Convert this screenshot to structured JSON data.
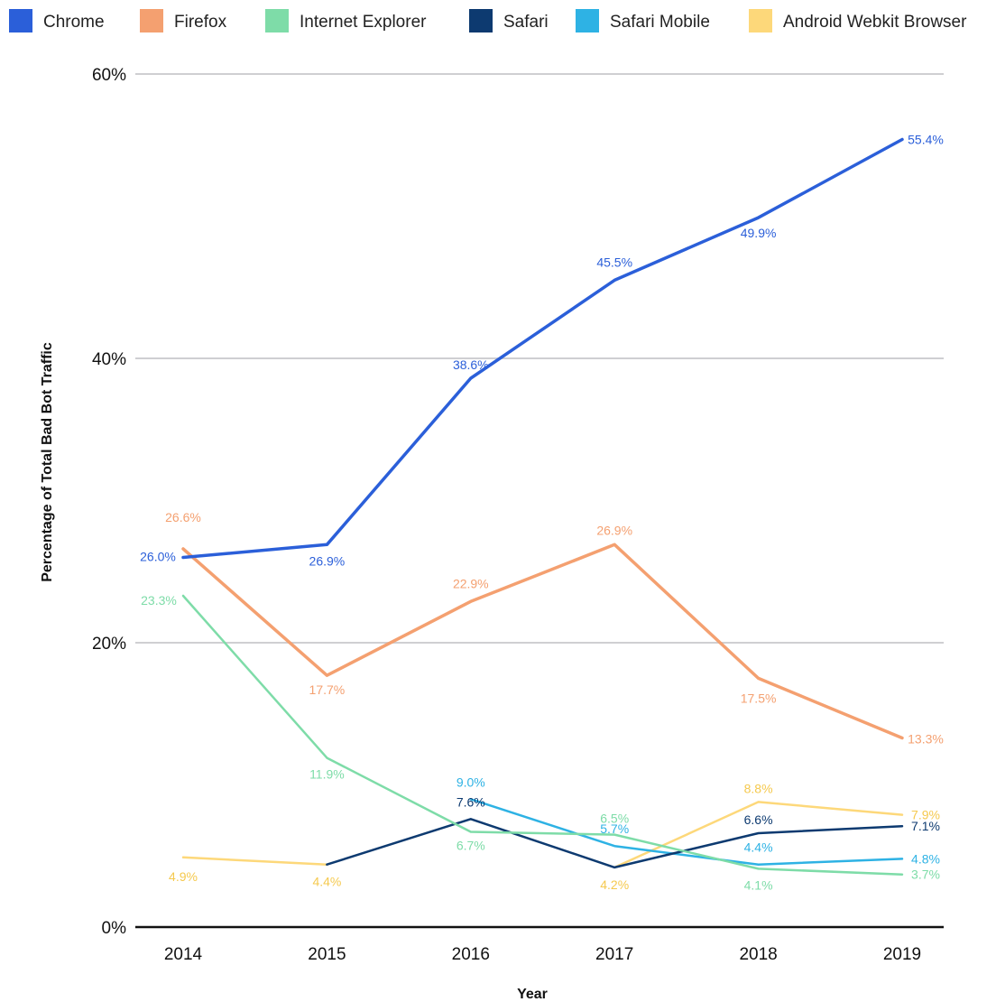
{
  "chart_data": {
    "type": "line",
    "title": "",
    "xlabel": "Year",
    "ylabel": "Percentage of Total Bad Bot Traffic",
    "x": [
      "2014",
      "2015",
      "2016",
      "2017",
      "2018",
      "2019"
    ],
    "ylim": [
      0,
      60
    ],
    "yticks": [
      0,
      20,
      40,
      60
    ],
    "ytick_labels": [
      "0%",
      "20%",
      "40%",
      "60%"
    ],
    "grid": true,
    "legend_position": "top",
    "series": [
      {
        "name": "Chrome",
        "color": "#2b5fd9",
        "values": [
          26.0,
          26.9,
          38.6,
          45.5,
          49.9,
          55.4
        ],
        "labels": [
          "26.0%",
          "26.9%",
          "38.6%",
          "45.5%",
          "49.9%",
          "55.4%"
        ]
      },
      {
        "name": "Firefox",
        "color": "#f4a070",
        "values": [
          26.6,
          17.7,
          22.9,
          26.9,
          17.5,
          13.3
        ],
        "labels": [
          "26.6%",
          "17.7%",
          "22.9%",
          "26.9%",
          "17.5%",
          "13.3%"
        ]
      },
      {
        "name": "Internet Explorer",
        "color": "#7edca8",
        "values": [
          23.3,
          11.9,
          6.7,
          6.5,
          4.1,
          3.7
        ],
        "labels": [
          "23.3%",
          "11.9%",
          "6.7%",
          "6.5%",
          "4.1%",
          "3.7%"
        ]
      },
      {
        "name": "Safari",
        "color": "#0d3a70",
        "values": [
          null,
          4.4,
          7.6,
          4.2,
          6.6,
          7.1
        ],
        "labels": [
          "",
          "",
          "7.6%",
          "",
          "6.6%",
          "7.1%"
        ]
      },
      {
        "name": "Safari Mobile",
        "color": "#2eb2e4",
        "values": [
          null,
          null,
          9.0,
          5.7,
          4.4,
          4.8
        ],
        "labels": [
          "",
          "",
          "9.0%",
          "5.7%",
          "4.4%",
          "4.8%"
        ]
      },
      {
        "name": "Android Webkit Browser",
        "color": "#fdd87a",
        "values": [
          4.9,
          4.4,
          null,
          4.2,
          8.8,
          7.9
        ],
        "labels": [
          "4.9%",
          "4.4%",
          "",
          "4.2%",
          "8.8%",
          "7.9%"
        ]
      }
    ]
  }
}
